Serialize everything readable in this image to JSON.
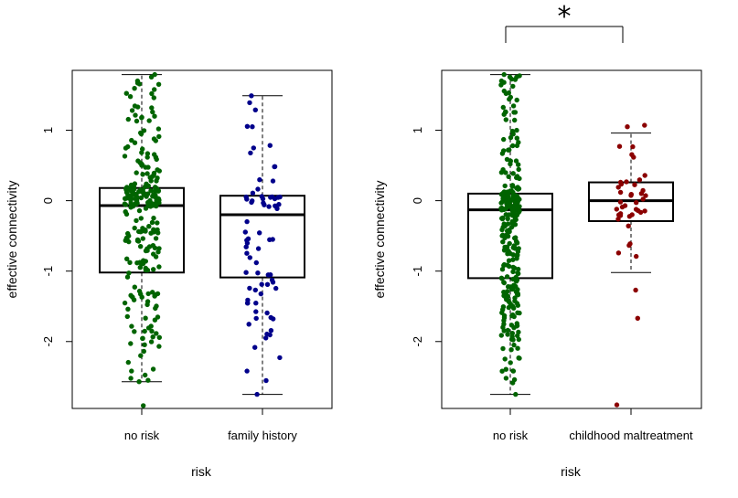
{
  "chart_data": [
    {
      "type": "box",
      "title": "",
      "xlabel": "risk",
      "ylabel": "effective connectivity",
      "ylim": [
        -2.95,
        1.85
      ],
      "yticks": [
        "-2",
        "-1",
        "0",
        "1"
      ],
      "categories": [
        "no risk",
        "family history"
      ],
      "colors": [
        "#006400",
        "#00008B"
      ],
      "boxes": [
        {
          "q1": -1.02,
          "median": -0.07,
          "q3": 0.18,
          "whisker_low": -2.57,
          "whisker_high": 1.79
        },
        {
          "q1": -1.09,
          "median": -0.2,
          "q3": 0.07,
          "whisker_low": -2.75,
          "whisker_high": 1.49
        }
      ],
      "points": [
        {
          "n": 240,
          "seed": 11,
          "spread": 0.42,
          "extra": [
            1.79,
            1.7,
            1.33,
            -2.57,
            -2.91,
            -2.42
          ]
        },
        {
          "n": 70,
          "seed": 23,
          "spread": 0.42,
          "extra": [
            1.49,
            1.05,
            -2.75,
            -2.42,
            -1.95
          ]
        }
      ]
    },
    {
      "type": "box",
      "title": "",
      "xlabel": "risk",
      "ylabel": "effective connectivity",
      "ylim": [
        -2.95,
        1.85
      ],
      "yticks": [
        "-2",
        "-1",
        "0",
        "1"
      ],
      "categories": [
        "no risk",
        "childhood maltreatment"
      ],
      "colors": [
        "#006400",
        "#8B0000"
      ],
      "annotation": "*",
      "boxes": [
        {
          "q1": -1.1,
          "median": -0.13,
          "q3": 0.1,
          "whisker_low": -2.75,
          "whisker_high": 1.79
        },
        {
          "q1": -0.29,
          "median": 0.0,
          "q3": 0.26,
          "whisker_low": -1.02,
          "whisker_high": 0.96
        }
      ],
      "points": [
        {
          "n": 280,
          "seed": 37,
          "spread": 0.22,
          "extra": [
            1.79,
            1.7,
            -2.75,
            -2.42
          ]
        },
        {
          "n": 38,
          "seed": 51,
          "spread": 0.35,
          "extra": [
            1.07,
            1.05,
            -1.67,
            -2.9,
            -1.27
          ]
        }
      ]
    }
  ]
}
